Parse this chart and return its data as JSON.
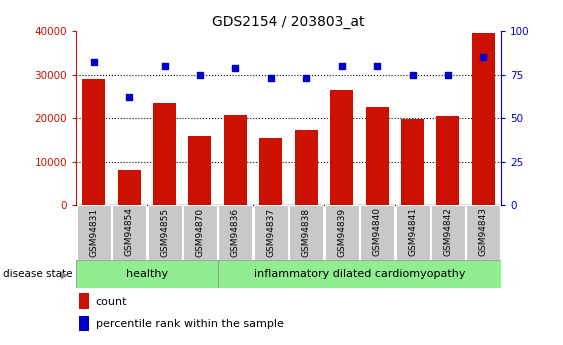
{
  "title": "GDS2154 / 203803_at",
  "samples": [
    "GSM94831",
    "GSM94854",
    "GSM94855",
    "GSM94870",
    "GSM94836",
    "GSM94837",
    "GSM94838",
    "GSM94839",
    "GSM94840",
    "GSM94841",
    "GSM94842",
    "GSM94843"
  ],
  "counts": [
    29000,
    8000,
    23500,
    15800,
    20800,
    15500,
    17200,
    26500,
    22500,
    19800,
    20500,
    39500
  ],
  "percentiles": [
    82,
    62,
    80,
    75,
    79,
    73,
    73,
    80,
    80,
    75,
    75,
    85
  ],
  "bar_color": "#cc1100",
  "dot_color": "#0000cc",
  "ylim_left": [
    0,
    40000
  ],
  "ylim_right": [
    0,
    100
  ],
  "yticks_left": [
    0,
    10000,
    20000,
    30000,
    40000
  ],
  "yticks_right": [
    0,
    25,
    50,
    75,
    100
  ],
  "group_healthy": {
    "label": "healthy",
    "indices": [
      0,
      1,
      2,
      3
    ]
  },
  "group_disease": {
    "label": "inflammatory dilated cardiomyopathy",
    "indices": [
      4,
      5,
      6,
      7,
      8,
      9,
      10,
      11
    ]
  },
  "disease_state_label": "disease state",
  "legend_count": "count",
  "legend_percentile": "percentile rank within the sample",
  "background_color": "#ffffff",
  "plot_bg_color": "#ffffff",
  "tick_label_bg": "#c8c8c8",
  "healthy_bg": "#90ee90",
  "disease_bg": "#90ee90",
  "left_tick_color": "#cc1100",
  "right_tick_color": "#0000cc"
}
